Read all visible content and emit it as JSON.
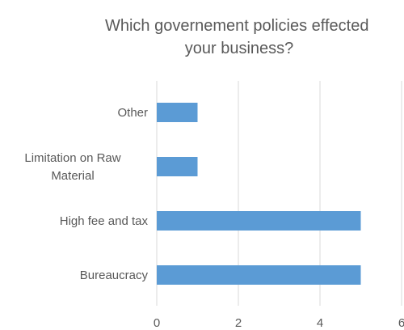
{
  "chart_data": {
    "type": "bar",
    "orientation": "horizontal",
    "title": "Which governement policies effected your business?",
    "title_lines": [
      "Which governement policies effected",
      "your business?"
    ],
    "categories": [
      "Other",
      "Limitation on Raw Material",
      "High fee and tax",
      "Bureaucracy"
    ],
    "category_label_lines": [
      [
        "Other"
      ],
      [
        "Limitation on Raw",
        "Material"
      ],
      [
        "High fee and tax"
      ],
      [
        "Bureaucracy"
      ]
    ],
    "values": [
      1,
      1,
      5,
      5
    ],
    "xlim": [
      0,
      6
    ],
    "xticks": [
      "0",
      "2",
      "4",
      "6"
    ],
    "grid": true,
    "legend": "none",
    "bar_color": "#5b9bd5",
    "grid_color": "#d9d9d9",
    "text_color": "#595959"
  }
}
